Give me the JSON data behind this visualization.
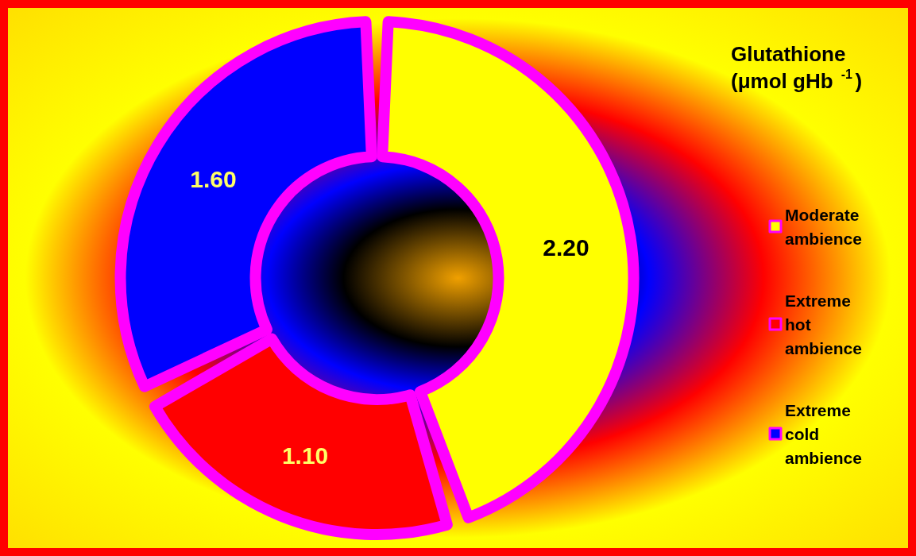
{
  "chart_data": {
    "type": "donut",
    "title": "Glutathione (μmol gHb$^{-1}$)",
    "categories": [
      "Moderate ambience",
      "Extreme hot ambience",
      "Extreme cold ambience"
    ],
    "values": [
      2.2,
      1.1,
      1.6
    ],
    "value_labels": [
      "2.20",
      "1.10",
      "1.60"
    ],
    "colors": [
      "#ffff00",
      "#ff0000",
      "#0000ff"
    ],
    "legend": "right"
  }
}
